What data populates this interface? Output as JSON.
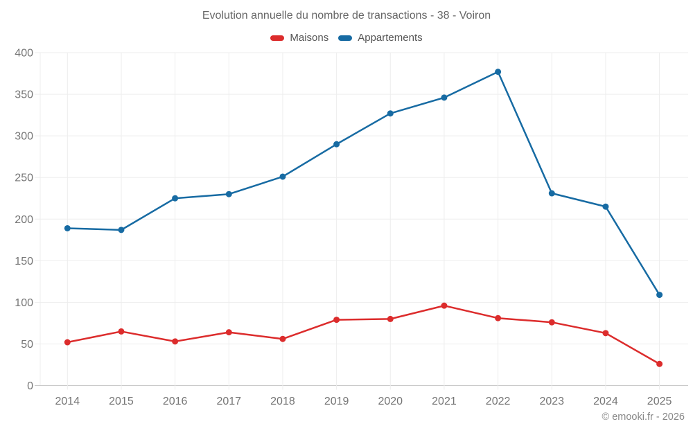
{
  "title": "Evolution annuelle du nombre de transactions - 38 - Voiron",
  "legend": [
    {
      "label": "Maisons",
      "color": "#dc2c2c"
    },
    {
      "label": "Appartements",
      "color": "#176ba3"
    }
  ],
  "footer": {
    "text": "© emooki.fr - 2026"
  },
  "colors": {
    "maisons": "#dc2c2c",
    "appartements": "#176ba3",
    "grid": "#ededed",
    "axis_line": "#c9c9c9",
    "tick_text": "#757575",
    "title_text": "#666666"
  },
  "chart_data": {
    "type": "line",
    "title": "Evolution annuelle du nombre de transactions - 38 - Voiron",
    "xlabel": "",
    "ylabel": "",
    "categories": [
      "2014",
      "2015",
      "2016",
      "2017",
      "2018",
      "2019",
      "2020",
      "2021",
      "2022",
      "2023",
      "2024",
      "2025"
    ],
    "series": [
      {
        "name": "Maisons",
        "color": "#dc2c2c",
        "values": [
          52,
          65,
          53,
          64,
          56,
          79,
          80,
          96,
          81,
          76,
          63,
          26
        ]
      },
      {
        "name": "Appartements",
        "color": "#176ba3",
        "values": [
          189,
          187,
          225,
          230,
          251,
          290,
          327,
          346,
          377,
          231,
          215,
          109
        ]
      }
    ],
    "ylim": [
      0,
      400
    ],
    "yticks": [
      0,
      50,
      100,
      150,
      200,
      250,
      300,
      350,
      400
    ],
    "grid": true,
    "legend_position": "top",
    "markers": true
  }
}
